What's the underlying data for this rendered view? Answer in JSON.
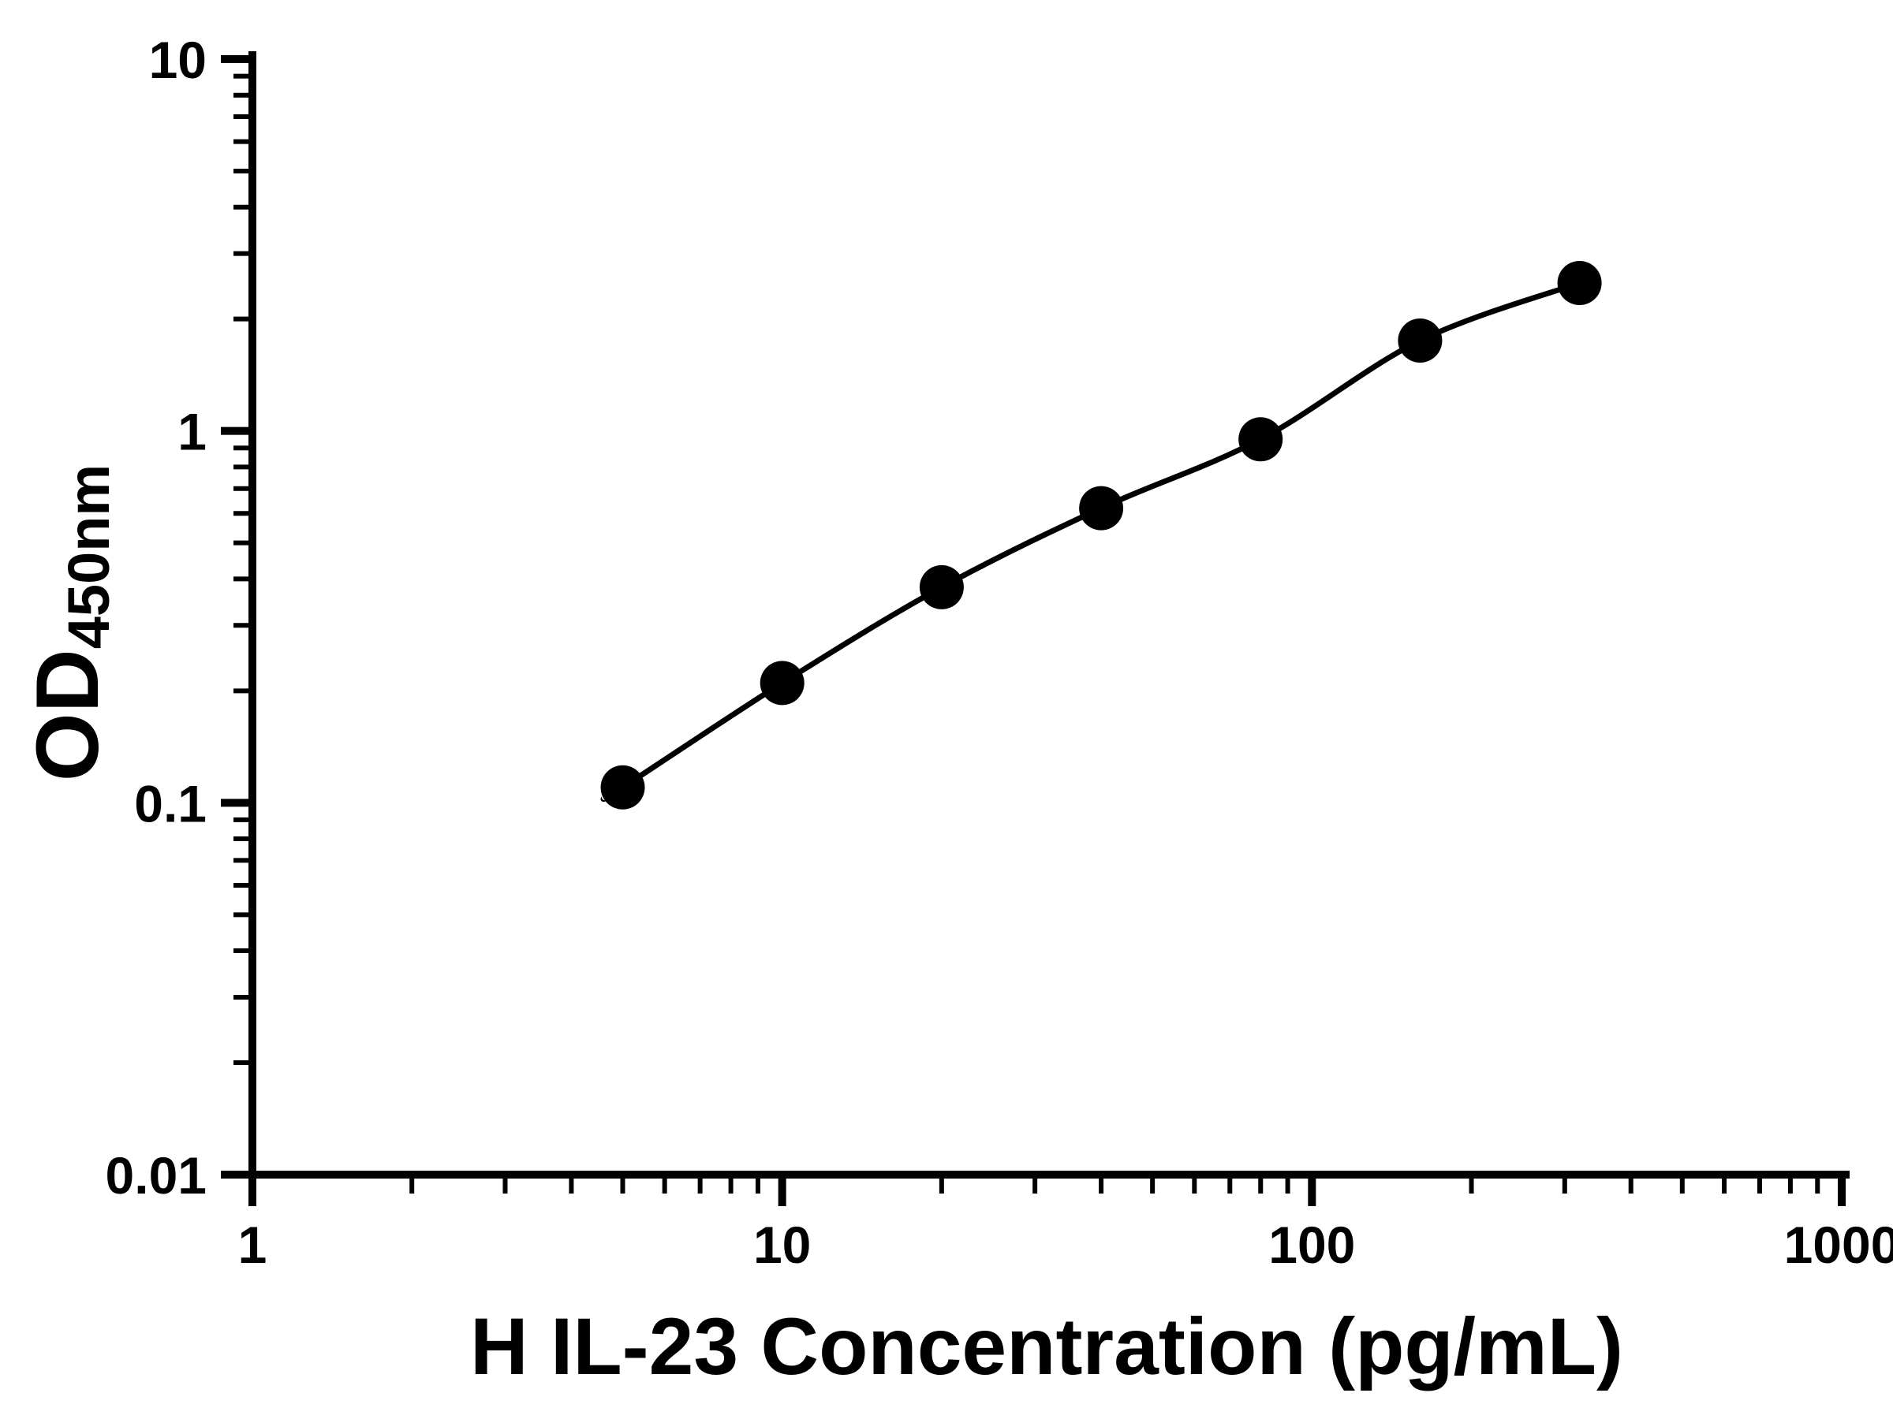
{
  "figure": {
    "background_color": "#ffffff",
    "foreground_color": "#000000"
  },
  "chart_data": {
    "type": "scatter",
    "title": "",
    "xlabel": "H IL-23 Concentration (pg/mL)",
    "ylabel": {
      "text": "OD",
      "subscript": "450nm"
    },
    "x_scale": "log",
    "y_scale": "log",
    "xlim": [
      1,
      1000
    ],
    "ylim": [
      0.01,
      10
    ],
    "x_tick_values": [
      1,
      10,
      100,
      1000
    ],
    "x_tick_labels": [
      "1",
      "10",
      "100",
      "1000"
    ],
    "y_tick_values": [
      10,
      1,
      0.1,
      0.01
    ],
    "y_tick_labels": [
      "10",
      "1",
      "0.1",
      "0.01"
    ],
    "grid": false,
    "legend": false,
    "marker": "circle",
    "series": [
      {
        "color": "#000000",
        "points": [
          {
            "x": 5,
            "y": 0.11
          },
          {
            "x": 10,
            "y": 0.21
          },
          {
            "x": 20,
            "y": 0.38
          },
          {
            "x": 40,
            "y": 0.62
          },
          {
            "x": 80,
            "y": 0.95
          },
          {
            "x": 160,
            "y": 1.75
          },
          {
            "x": 320,
            "y": 2.5
          }
        ]
      }
    ]
  }
}
